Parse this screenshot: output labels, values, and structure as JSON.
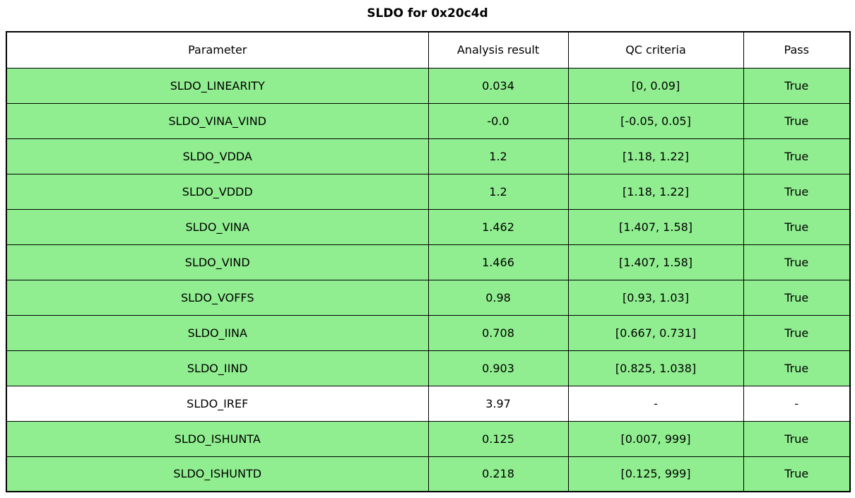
{
  "title": "SLDO for 0x20c4d",
  "colors": {
    "pass_green": "#90ee90",
    "neutral": "#ffffff",
    "border": "#000000"
  },
  "table": {
    "columns": [
      "Parameter",
      "Analysis result",
      "QC criteria",
      "Pass"
    ],
    "rows": [
      {
        "parameter": "SLDO_LINEARITY",
        "result": "0.034",
        "criteria": "[0, 0.09]",
        "pass": "True",
        "highlight": true
      },
      {
        "parameter": "SLDO_VINA_VIND",
        "result": "-0.0",
        "criteria": "[-0.05, 0.05]",
        "pass": "True",
        "highlight": true
      },
      {
        "parameter": "SLDO_VDDA",
        "result": "1.2",
        "criteria": "[1.18, 1.22]",
        "pass": "True",
        "highlight": true
      },
      {
        "parameter": "SLDO_VDDD",
        "result": "1.2",
        "criteria": "[1.18, 1.22]",
        "pass": "True",
        "highlight": true
      },
      {
        "parameter": "SLDO_VINA",
        "result": "1.462",
        "criteria": "[1.407, 1.58]",
        "pass": "True",
        "highlight": true
      },
      {
        "parameter": "SLDO_VIND",
        "result": "1.466",
        "criteria": "[1.407, 1.58]",
        "pass": "True",
        "highlight": true
      },
      {
        "parameter": "SLDO_VOFFS",
        "result": "0.98",
        "criteria": "[0.93, 1.03]",
        "pass": "True",
        "highlight": true
      },
      {
        "parameter": "SLDO_IINA",
        "result": "0.708",
        "criteria": "[0.667, 0.731]",
        "pass": "True",
        "highlight": true
      },
      {
        "parameter": "SLDO_IIND",
        "result": "0.903",
        "criteria": "[0.825, 1.038]",
        "pass": "True",
        "highlight": true
      },
      {
        "parameter": "SLDO_IREF",
        "result": "3.97",
        "criteria": "-",
        "pass": "-",
        "highlight": false
      },
      {
        "parameter": "SLDO_ISHUNTA",
        "result": "0.125",
        "criteria": "[0.007, 999]",
        "pass": "True",
        "highlight": true
      },
      {
        "parameter": "SLDO_ISHUNTD",
        "result": "0.218",
        "criteria": "[0.125, 999]",
        "pass": "True",
        "highlight": true
      }
    ]
  }
}
